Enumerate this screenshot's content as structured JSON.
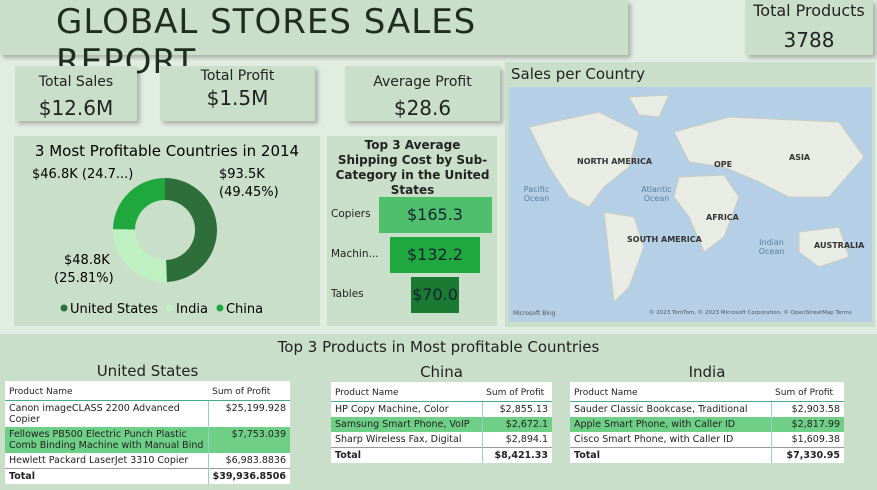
{
  "header": {
    "title": "GLOBAL STORES SALES REPORT"
  },
  "kpis": [
    {
      "label": "Total Products",
      "value": "3788"
    },
    {
      "label": "Total Sales",
      "value": "$12.6M"
    },
    {
      "label": "Total Profit",
      "value": "$1.5M"
    },
    {
      "label": "Average Profit",
      "value": "$28.6"
    }
  ],
  "chart_data": [
    {
      "type": "donut",
      "title": "3 Most Profitable Countries in 2014",
      "categories": [
        "United States",
        "India",
        "China"
      ],
      "values": [
        93500,
        48800,
        46800
      ],
      "value_labels": [
        "$93.5K (49.45%)",
        "$48.8K (25.81%)",
        "$46.8K (24.7...)"
      ],
      "colors": [
        "#2d6e3b",
        "#bff0c2",
        "#1fa83e"
      ],
      "legend": "bottom"
    },
    {
      "type": "funnel",
      "title": "Top 3 Average Shipping Cost by Sub-Category in the United States",
      "categories": [
        "Copiers",
        "Machin...",
        "Tables"
      ],
      "values": [
        165.3,
        132.2,
        70.0
      ],
      "value_labels": [
        "$165.3",
        "$132.2",
        "$70.0"
      ],
      "colors": [
        "#4fbf6b",
        "#1fa83e",
        "#1b7a32"
      ]
    }
  ],
  "map": {
    "title": "Sales per Country",
    "labels": [
      "NORTH AMERICA",
      "OPE",
      "ASIA",
      "Pacific Ocean",
      "Atlantic Ocean",
      "AFRICA",
      "SOUTH AMERICA",
      "Indian Ocean",
      "AUSTRALIA"
    ],
    "logo": "Microsoft Bing",
    "credits": "© 2023 TomTom, © 2023 Microsoft Corporation, © OpenStreetMap  Terms"
  },
  "tables_title": "Top 3 Products in Most profitable Countries",
  "tables": [
    {
      "title": "United States",
      "columns": [
        "Product Name",
        "Sum of Profit"
      ],
      "rows": [
        [
          "Canon imageCLASS 2200 Advanced Copier",
          "$25,199.928"
        ],
        [
          "Fellowes PB500 Electric Punch Plastic Comb Binding Machine with Manual Bind",
          "$7,753.039"
        ],
        [
          "Hewlett Packard LaserJet 3310 Copier",
          "$6,983.8836"
        ]
      ],
      "total": [
        "Total",
        "$39,936.8506"
      ],
      "highlight": 1
    },
    {
      "title": "China",
      "columns": [
        "Product Name",
        "Sum of Profit"
      ],
      "rows": [
        [
          "HP Copy Machine, Color",
          "$2,855.13"
        ],
        [
          "Samsung Smart Phone, VoIP",
          "$2,672.1"
        ],
        [
          "Sharp Wireless Fax, Digital",
          "$2,894.1"
        ]
      ],
      "total": [
        "Total",
        "$8,421.33"
      ],
      "highlight": 1
    },
    {
      "title": "India",
      "columns": [
        "Product Name",
        "Sum of Profit"
      ],
      "rows": [
        [
          "Sauder Classic Bookcase, Traditional",
          "$2,903.58"
        ],
        [
          "Apple Smart Phone, with Caller ID",
          "$2,817.99"
        ],
        [
          "Cisco Smart Phone, with Caller ID",
          "$1,609.38"
        ]
      ],
      "total": [
        "Total",
        "$7,330.95"
      ],
      "highlight": 1
    }
  ]
}
